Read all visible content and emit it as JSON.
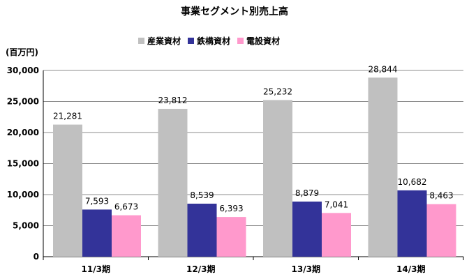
{
  "chart_data": {
    "type": "bar",
    "title": "事業セグメント別売上高",
    "unit": "(百万円)",
    "categories": [
      "11/3期",
      "12/3期",
      "13/3期",
      "14/3期"
    ],
    "series": [
      {
        "name": "産業資材",
        "values": [
          21281,
          23812,
          25232,
          28844
        ],
        "labels": [
          "21,281",
          "23,812",
          "25,232",
          "28,844"
        ],
        "color": "#c0c0c0"
      },
      {
        "name": "鉄構資材",
        "values": [
          7593,
          8539,
          8879,
          10682
        ],
        "labels": [
          "7,593",
          "8,539",
          "8,879",
          "10,682"
        ],
        "color": "#333399"
      },
      {
        "name": "電設資材",
        "values": [
          6673,
          6393,
          7041,
          8463
        ],
        "labels": [
          "6,673",
          "6,393",
          "7,041",
          "8,463"
        ],
        "color": "#ff99cc"
      }
    ],
    "ylim": [
      0,
      30000
    ],
    "yticks": [
      0,
      5000,
      10000,
      15000,
      20000,
      25000,
      30000
    ],
    "ytick_labels": [
      "0",
      "5,000",
      "10,000",
      "15,000",
      "20,000",
      "25,000",
      "30,000"
    ],
    "grid": true,
    "legend_position": "top"
  }
}
